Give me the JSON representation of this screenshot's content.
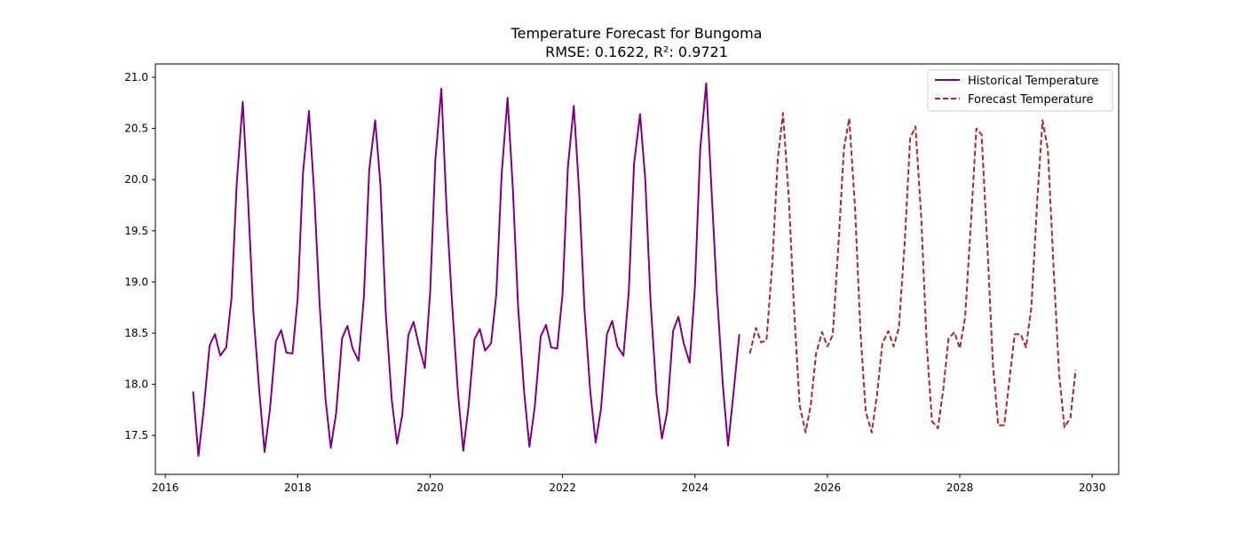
{
  "chart_data": {
    "type": "line",
    "title": "Temperature Forecast for Bungoma",
    "subtitle": "RMSE: 0.1622, R²: 0.9721",
    "xlabel": "",
    "ylabel": "",
    "xlim": [
      2015.85,
      2030.4
    ],
    "ylim": [
      17.12,
      21.13
    ],
    "x_ticks": [
      "2016",
      "2018",
      "2020",
      "2022",
      "2024",
      "2026",
      "2028",
      "2030"
    ],
    "y_ticks": [
      "17.5",
      "18.0",
      "18.5",
      "19.0",
      "19.5",
      "20.0",
      "20.5",
      "21.0"
    ],
    "grid": false,
    "legend_position": "top-right",
    "series": [
      {
        "name": "Historical Temperature",
        "color": "#800080",
        "style": "solid",
        "points": [
          [
            2016.42,
            17.93
          ],
          [
            2016.5,
            17.3
          ],
          [
            2016.58,
            17.75
          ],
          [
            2016.67,
            18.38
          ],
          [
            2016.75,
            18.49
          ],
          [
            2016.83,
            18.28
          ],
          [
            2016.92,
            18.36
          ],
          [
            2017.0,
            18.85
          ],
          [
            2017.08,
            19.97
          ],
          [
            2017.17,
            20.76
          ],
          [
            2017.25,
            19.8
          ],
          [
            2017.33,
            18.7
          ],
          [
            2017.42,
            17.93
          ],
          [
            2017.5,
            17.34
          ],
          [
            2017.58,
            17.75
          ],
          [
            2017.67,
            18.42
          ],
          [
            2017.75,
            18.53
          ],
          [
            2017.83,
            18.31
          ],
          [
            2017.92,
            18.3
          ],
          [
            2018.0,
            18.84
          ],
          [
            2018.08,
            20.07
          ],
          [
            2018.17,
            20.67
          ],
          [
            2018.25,
            19.85
          ],
          [
            2018.33,
            18.8
          ],
          [
            2018.42,
            17.86
          ],
          [
            2018.5,
            17.38
          ],
          [
            2018.58,
            17.72
          ],
          [
            2018.67,
            18.45
          ],
          [
            2018.75,
            18.57
          ],
          [
            2018.83,
            18.35
          ],
          [
            2018.92,
            18.23
          ],
          [
            2019.0,
            18.86
          ],
          [
            2019.08,
            20.1
          ],
          [
            2019.17,
            20.58
          ],
          [
            2019.25,
            19.95
          ],
          [
            2019.33,
            18.7
          ],
          [
            2019.42,
            17.85
          ],
          [
            2019.5,
            17.42
          ],
          [
            2019.58,
            17.7
          ],
          [
            2019.67,
            18.48
          ],
          [
            2019.75,
            18.61
          ],
          [
            2019.83,
            18.38
          ],
          [
            2019.92,
            18.16
          ],
          [
            2020.0,
            18.9
          ],
          [
            2020.08,
            20.2
          ],
          [
            2020.17,
            20.89
          ],
          [
            2020.25,
            19.7
          ],
          [
            2020.33,
            18.8
          ],
          [
            2020.42,
            17.92
          ],
          [
            2020.5,
            17.35
          ],
          [
            2020.58,
            17.78
          ],
          [
            2020.67,
            18.44
          ],
          [
            2020.75,
            18.54
          ],
          [
            2020.83,
            18.33
          ],
          [
            2020.92,
            18.4
          ],
          [
            2021.0,
            18.88
          ],
          [
            2021.08,
            20.05
          ],
          [
            2021.17,
            20.8
          ],
          [
            2021.25,
            19.9
          ],
          [
            2021.33,
            18.75
          ],
          [
            2021.42,
            17.92
          ],
          [
            2021.5,
            17.39
          ],
          [
            2021.58,
            17.78
          ],
          [
            2021.67,
            18.47
          ],
          [
            2021.75,
            18.58
          ],
          [
            2021.83,
            18.36
          ],
          [
            2021.92,
            18.35
          ],
          [
            2022.0,
            18.88
          ],
          [
            2022.08,
            20.12
          ],
          [
            2022.17,
            20.72
          ],
          [
            2022.25,
            19.88
          ],
          [
            2022.33,
            18.75
          ],
          [
            2022.42,
            17.92
          ],
          [
            2022.5,
            17.43
          ],
          [
            2022.58,
            17.76
          ],
          [
            2022.67,
            18.49
          ],
          [
            2022.75,
            18.62
          ],
          [
            2022.83,
            18.37
          ],
          [
            2022.92,
            18.28
          ],
          [
            2023.0,
            18.9
          ],
          [
            2023.08,
            20.15
          ],
          [
            2023.17,
            20.64
          ],
          [
            2023.25,
            20.0
          ],
          [
            2023.33,
            18.8
          ],
          [
            2023.42,
            17.9
          ],
          [
            2023.5,
            17.47
          ],
          [
            2023.58,
            17.73
          ],
          [
            2023.67,
            18.52
          ],
          [
            2023.75,
            18.66
          ],
          [
            2023.83,
            18.4
          ],
          [
            2023.92,
            18.21
          ],
          [
            2024.0,
            18.95
          ],
          [
            2024.08,
            20.3
          ],
          [
            2024.17,
            20.94
          ],
          [
            2024.25,
            19.9
          ],
          [
            2024.33,
            18.9
          ],
          [
            2024.42,
            18.0
          ],
          [
            2024.5,
            17.4
          ],
          [
            2024.58,
            17.9
          ],
          [
            2024.67,
            18.49
          ]
        ]
      },
      {
        "name": "Forecast Temperature",
        "color": "#A52A2A",
        "style": "dashed",
        "points": [
          [
            2024.83,
            18.3
          ],
          [
            2024.92,
            18.55
          ],
          [
            2025.0,
            18.41
          ],
          [
            2025.08,
            18.43
          ],
          [
            2025.17,
            19.2
          ],
          [
            2025.25,
            20.2
          ],
          [
            2025.33,
            20.65
          ],
          [
            2025.42,
            19.8
          ],
          [
            2025.5,
            18.7
          ],
          [
            2025.58,
            17.8
          ],
          [
            2025.67,
            17.53
          ],
          [
            2025.75,
            17.8
          ],
          [
            2025.83,
            18.3
          ],
          [
            2025.92,
            18.51
          ],
          [
            2026.0,
            18.37
          ],
          [
            2026.08,
            18.48
          ],
          [
            2026.17,
            19.4
          ],
          [
            2026.25,
            20.3
          ],
          [
            2026.33,
            20.6
          ],
          [
            2026.42,
            19.7
          ],
          [
            2026.5,
            18.5
          ],
          [
            2026.58,
            17.73
          ],
          [
            2026.67,
            17.53
          ],
          [
            2026.75,
            17.9
          ],
          [
            2026.83,
            18.4
          ],
          [
            2026.92,
            18.52
          ],
          [
            2027.0,
            18.37
          ],
          [
            2027.08,
            18.55
          ],
          [
            2027.17,
            19.4
          ],
          [
            2027.25,
            20.4
          ],
          [
            2027.33,
            20.52
          ],
          [
            2027.42,
            19.6
          ],
          [
            2027.5,
            18.4
          ],
          [
            2027.58,
            17.64
          ],
          [
            2027.67,
            17.57
          ],
          [
            2027.75,
            17.95
          ],
          [
            2027.83,
            18.45
          ],
          [
            2027.92,
            18.51
          ],
          [
            2028.0,
            18.35
          ],
          [
            2028.08,
            18.65
          ],
          [
            2028.17,
            19.6
          ],
          [
            2028.25,
            20.5
          ],
          [
            2028.33,
            20.44
          ],
          [
            2028.42,
            19.3
          ],
          [
            2028.5,
            18.2
          ],
          [
            2028.58,
            17.6
          ],
          [
            2028.67,
            17.6
          ],
          [
            2028.75,
            18.05
          ],
          [
            2028.83,
            18.49
          ],
          [
            2028.92,
            18.49
          ],
          [
            2029.0,
            18.36
          ],
          [
            2029.08,
            18.75
          ],
          [
            2029.17,
            19.8
          ],
          [
            2029.25,
            20.58
          ],
          [
            2029.33,
            20.3
          ],
          [
            2029.42,
            19.1
          ],
          [
            2029.5,
            18.1
          ],
          [
            2029.58,
            17.58
          ],
          [
            2029.67,
            17.67
          ],
          [
            2029.75,
            18.14
          ]
        ]
      }
    ]
  }
}
